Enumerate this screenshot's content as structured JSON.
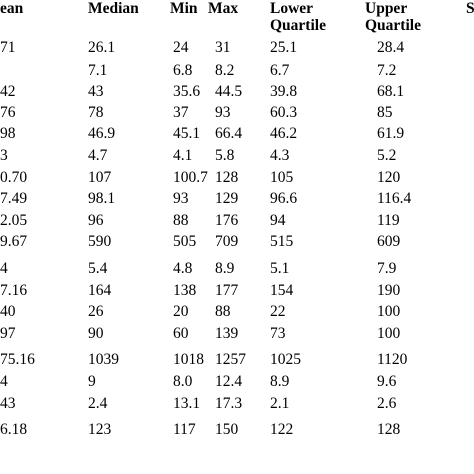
{
  "table": {
    "headers": {
      "mean": "ean",
      "median": "Median",
      "min": "Min",
      "max": "Max",
      "lower_quartile": [
        "Lower",
        "Quartile"
      ],
      "upper_quartile": [
        "Upper",
        "Quartile"
      ],
      "extra": "S"
    },
    "rows": [
      [
        "71",
        "26.1",
        "24",
        "31",
        "25.1",
        "28.4"
      ],
      [
        "",
        "7.1",
        "6.8",
        "8.2",
        "6.7",
        "7.2"
      ],
      [
        "42",
        "43",
        "35.6",
        "44.5",
        "39.8",
        "68.1"
      ],
      [
        "76",
        "78",
        "37",
        "93",
        "60.3",
        "85"
      ],
      [
        "98",
        "46.9",
        "45.1",
        "66.4",
        "46.2",
        "61.9"
      ],
      [
        "3",
        "4.7",
        "4.1",
        "5.8",
        "4.3",
        "5.2"
      ],
      [
        "0.70",
        "107",
        "100.7",
        "128",
        "105",
        "120"
      ],
      [
        "7.49",
        "98.1",
        "93",
        "129",
        "96.6",
        "116.4"
      ],
      [
        "2.05",
        "96",
        "88",
        "176",
        "94",
        "119"
      ],
      [
        "9.67",
        "590",
        "505",
        "709",
        "515",
        "609"
      ],
      [
        "4",
        "5.4",
        "4.8",
        "8.9",
        "5.1",
        "7.9"
      ],
      [
        "7.16",
        "164",
        "138",
        "177",
        "154",
        "190"
      ],
      [
        "40",
        "26",
        "20",
        "88",
        "22",
        "100"
      ],
      [
        "97",
        "90",
        "60",
        "139",
        "73",
        "100"
      ],
      [
        "75.16",
        "1039",
        "1018",
        "1257",
        "1025",
        "1120"
      ],
      [
        "4",
        "9",
        "8.0",
        "12.4",
        "8.9",
        "9.6"
      ],
      [
        "43",
        "2.4",
        "13.1",
        "17.3",
        "2.1",
        "2.6"
      ],
      [
        "6.18",
        "123",
        "117",
        "150",
        "122",
        "128"
      ]
    ]
  }
}
